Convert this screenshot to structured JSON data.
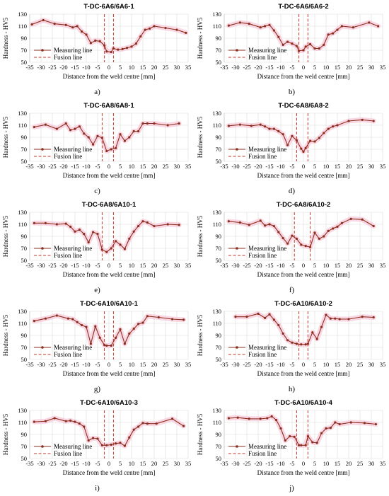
{
  "figure": {
    "captions": [
      "a)",
      "b)",
      "c)",
      "d)",
      "e)",
      "f)",
      "g)",
      "h)",
      "i)",
      "j)"
    ]
  },
  "colors": {
    "measuring_line": "#8B2E1F",
    "fusion_line": "#C0392B",
    "band": "#F7C9DA",
    "grid": "#D9D9D9",
    "axis_text": "#000000"
  },
  "chart_data": [
    {
      "type": "line",
      "title": "T-DC-6A6/6A6-1",
      "xlabel": "Distance from the weld centre [mm]",
      "ylabel": "Hardness - HV5",
      "xlim": [
        -35,
        35
      ],
      "ylim": [
        50,
        130
      ],
      "xticks": [
        -35,
        -30,
        -25,
        -20,
        -15,
        -10,
        -5,
        0,
        5,
        10,
        15,
        20,
        25,
        30,
        35
      ],
      "yticks": [
        50,
        70,
        90,
        110,
        130
      ],
      "grid": true,
      "legend_position": "lower-left",
      "series": [
        {
          "name": "Measuring line",
          "x": [
            -34,
            -29,
            -24,
            -19,
            -16,
            -14,
            -12,
            -10,
            -8,
            -6,
            -4,
            -2,
            -1,
            1,
            2,
            4,
            6,
            8,
            10,
            12,
            14,
            16,
            18,
            20,
            25,
            30,
            34
          ],
          "y": [
            113,
            120,
            114,
            112,
            108,
            110,
            101,
            96,
            82,
            86,
            85,
            78,
            68,
            67,
            73,
            71,
            72,
            74,
            76,
            81,
            93,
            104,
            106,
            110,
            107,
            104,
            99
          ]
        },
        {
          "name": "Fusion line",
          "x": [
            -2,
            2
          ]
        }
      ]
    },
    {
      "type": "line",
      "title": "T-DC-6A6/6A6-2",
      "xlabel": "Distance from the weld centre [mm]",
      "ylabel": "Hardness - HV5",
      "xlim": [
        -35,
        35
      ],
      "ylim": [
        50,
        130
      ],
      "xticks": [
        -35,
        -30,
        -25,
        -20,
        -15,
        -10,
        -5,
        0,
        5,
        10,
        15,
        20,
        25,
        30,
        35
      ],
      "yticks": [
        50,
        70,
        90,
        110,
        130
      ],
      "grid": true,
      "legend_position": "lower-left",
      "series": [
        {
          "name": "Measuring line",
          "x": [
            -33,
            -28,
            -24,
            -19,
            -17,
            -15,
            -13,
            -11,
            -9,
            -7,
            -5,
            -3,
            -2,
            0,
            1,
            3,
            5,
            7,
            9,
            11,
            13,
            15,
            17,
            22,
            29,
            33
          ],
          "y": [
            111,
            116,
            114,
            108,
            110,
            112,
            103,
            92,
            79,
            84,
            81,
            77,
            69,
            70,
            76,
            80,
            73,
            73,
            79,
            96,
            98,
            104,
            110,
            108,
            116,
            110
          ]
        },
        {
          "name": "Fusion line",
          "x": [
            -2,
            2
          ]
        }
      ]
    },
    {
      "type": "line",
      "title": "T-DC-6A8/6A8-1",
      "xlabel": "Distance from the weld centre [mm]",
      "ylabel": "Hardness - HV5",
      "xlim": [
        -35,
        35
      ],
      "ylim": [
        50,
        130
      ],
      "xticks": [
        -35,
        -30,
        -25,
        -20,
        -15,
        -10,
        -5,
        0,
        5,
        10,
        15,
        20,
        25,
        30,
        35
      ],
      "yticks": [
        50,
        70,
        90,
        110,
        130
      ],
      "grid": true,
      "legend_position": "lower-left",
      "series": [
        {
          "name": "Measuring line",
          "x": [
            -33,
            -28,
            -23,
            -19,
            -17,
            -15,
            -13,
            -11,
            -9,
            -7,
            -5,
            -3,
            -1,
            1,
            3,
            5,
            7,
            9,
            11,
            13,
            15,
            17,
            20,
            26,
            31
          ],
          "y": [
            107,
            111,
            104,
            113,
            102,
            104,
            108,
            96,
            90,
            78,
            92,
            89,
            67,
            70,
            72,
            95,
            84,
            90,
            100,
            100,
            113,
            113,
            113,
            110,
            113
          ]
        },
        {
          "name": "Fusion line",
          "x": [
            -3,
            2
          ]
        }
      ]
    },
    {
      "type": "line",
      "title": "T-DC-6A8/6A8-2",
      "xlabel": "Distance from the weld centre [mm]",
      "ylabel": "Hardness - HV5",
      "xlim": [
        -35,
        35
      ],
      "ylim": [
        50,
        130
      ],
      "xticks": [
        -35,
        -30,
        -25,
        -20,
        -15,
        -10,
        -5,
        0,
        5,
        10,
        15,
        20,
        25,
        30,
        35
      ],
      "yticks": [
        50,
        70,
        90,
        110,
        130
      ],
      "grid": true,
      "legend_position": "lower-left",
      "series": [
        {
          "name": "Measuring line",
          "x": [
            -33,
            -28,
            -23,
            -19,
            -17,
            -15,
            -13,
            -11,
            -9,
            -7,
            -5,
            -3,
            -1,
            0,
            1,
            3,
            5,
            7,
            9,
            11,
            13,
            15,
            20,
            26,
            31
          ],
          "y": [
            109,
            111,
            109,
            111,
            108,
            104,
            104,
            100,
            95,
            77,
            92,
            85,
            71,
            66,
            72,
            84,
            83,
            89,
            97,
            104,
            108,
            110,
            117,
            119,
            117
          ]
        },
        {
          "name": "Fusion line",
          "x": [
            -3,
            2
          ]
        }
      ]
    },
    {
      "type": "line",
      "title": "T-DC-6A8/6A10-1",
      "xlabel": "Distance from the weld centre [mm]",
      "ylabel": "Hardness - HV5",
      "xlim": [
        -35,
        35
      ],
      "ylim": [
        50,
        130
      ],
      "xticks": [
        -35,
        -30,
        -25,
        -20,
        -15,
        -10,
        -5,
        0,
        5,
        10,
        15,
        20,
        25,
        30,
        35
      ],
      "yticks": [
        50,
        70,
        90,
        110,
        130
      ],
      "grid": true,
      "legend_position": "lower-left",
      "series": [
        {
          "name": "Measuring line",
          "x": [
            -33,
            -28,
            -23,
            -19,
            -17,
            -15,
            -13,
            -11,
            -9,
            -7,
            -5,
            -3,
            -1,
            1,
            3,
            5,
            7,
            9,
            11,
            13,
            15,
            17,
            20,
            26,
            31
          ],
          "y": [
            112,
            112,
            110,
            111,
            106,
            98,
            101,
            94,
            80,
            97,
            94,
            68,
            64,
            70,
            82,
            76,
            69,
            86,
            98,
            107,
            115,
            113,
            107,
            110,
            109
          ]
        },
        {
          "name": "Fusion line",
          "x": [
            -3,
            2
          ]
        }
      ]
    },
    {
      "type": "line",
      "title": "T-DC-6A8/6A10-2",
      "xlabel": "Distance from the weld centre [mm]",
      "ylabel": "Hardness - HV5",
      "xlim": [
        -35,
        35
      ],
      "ylim": [
        50,
        130
      ],
      "xticks": [
        -35,
        -30,
        -25,
        -20,
        -15,
        -10,
        -5,
        0,
        5,
        10,
        15,
        20,
        25,
        30,
        35
      ],
      "yticks": [
        50,
        70,
        90,
        110,
        130
      ],
      "grid": true,
      "legend_position": "lower-left",
      "series": [
        {
          "name": "Measuring line",
          "x": [
            -33,
            -28,
            -24,
            -19,
            -17,
            -15,
            -13,
            -11,
            -9,
            -7,
            -5,
            -3,
            -1,
            1,
            3,
            5,
            7,
            9,
            11,
            13,
            15,
            17,
            21,
            26,
            31
          ],
          "y": [
            115,
            113,
            109,
            116,
            108,
            110,
            107,
            97,
            87,
            78,
            91,
            86,
            76,
            74,
            72,
            96,
            86,
            90,
            99,
            103,
            106,
            112,
            119,
            118,
            107
          ]
        },
        {
          "name": "Fusion line",
          "x": [
            -4,
            3
          ]
        }
      ]
    },
    {
      "type": "line",
      "title": "T-DC-6A10/6A10-1",
      "xlabel": "Distance from the weld centre [mm]",
      "ylabel": "Hardness - HV5",
      "xlim": [
        -35,
        35
      ],
      "ylim": [
        50,
        130
      ],
      "xticks": [
        -35,
        -30,
        -25,
        -20,
        -15,
        -10,
        -5,
        0,
        5,
        10,
        15,
        20,
        25,
        30,
        35
      ],
      "yticks": [
        50,
        70,
        90,
        110,
        130
      ],
      "grid": true,
      "legend_position": "lower-left",
      "series": [
        {
          "name": "Measuring line",
          "x": [
            -33,
            -28,
            -23,
            -18,
            -16,
            -14,
            -12,
            -10,
            -8,
            -6,
            -4,
            -2,
            -1,
            1,
            3,
            5,
            7,
            9,
            11,
            13,
            15,
            17,
            22,
            28,
            33
          ],
          "y": [
            114,
            118,
            123,
            118,
            117,
            112,
            107,
            104,
            76,
            105,
            86,
            74,
            73,
            73,
            86,
            100,
            76,
            93,
            101,
            109,
            111,
            122,
            120,
            117,
            116
          ]
        },
        {
          "name": "Fusion line",
          "x": [
            -2,
            2
          ]
        }
      ]
    },
    {
      "type": "line",
      "title": "T-DC-6A10/6A10-2",
      "xlabel": "Distance from the weld centre [mm]",
      "ylabel": "Hardness - HV5",
      "xlim": [
        -35,
        35
      ],
      "ylim": [
        50,
        130
      ],
      "xticks": [
        -35,
        -30,
        -25,
        -20,
        -15,
        -10,
        -5,
        0,
        5,
        10,
        15,
        20,
        25,
        30,
        35
      ],
      "yticks": [
        50,
        70,
        90,
        110,
        130
      ],
      "grid": true,
      "legend_position": "lower-left",
      "series": [
        {
          "name": "Measuring line",
          "x": [
            -30,
            -25,
            -20,
            -17,
            -15,
            -13,
            -11,
            -9,
            -7,
            -5,
            -3,
            -1,
            1,
            2,
            4,
            6,
            8,
            10,
            12,
            14,
            16,
            20,
            26,
            31
          ],
          "y": [
            121,
            121,
            126,
            119,
            125,
            116,
            107,
            93,
            82,
            78,
            76,
            75,
            75,
            76,
            95,
            84,
            104,
            124,
            118,
            118,
            117,
            117,
            121,
            120
          ]
        },
        {
          "name": "Fusion line",
          "x": [
            -2,
            2
          ]
        }
      ]
    },
    {
      "type": "line",
      "title": "T-DC-6A10/6A10-3",
      "xlabel": "Distance from the weld centre [mm]",
      "ylabel": "Hardness - HV5",
      "xlim": [
        -35,
        35
      ],
      "ylim": [
        50,
        130
      ],
      "xticks": [
        -35,
        -30,
        -25,
        -20,
        -15,
        -10,
        -5,
        0,
        5,
        10,
        15,
        20,
        25,
        30,
        35
      ],
      "yticks": [
        50,
        70,
        90,
        110,
        130
      ],
      "grid": true,
      "legend_position": "lower-left",
      "series": [
        {
          "name": "Measuring line",
          "x": [
            -33,
            -28,
            -24,
            -19,
            -17,
            -15,
            -13,
            -11,
            -9,
            -7,
            -5,
            -3,
            -1,
            1,
            3,
            5,
            7,
            9,
            11,
            13,
            15,
            17,
            21,
            28,
            33
          ],
          "y": [
            111,
            112,
            117,
            112,
            113,
            111,
            108,
            103,
            80,
            84,
            83,
            72,
            72,
            73,
            75,
            76,
            71,
            85,
            98,
            103,
            109,
            108,
            108,
            116,
            104
          ]
        },
        {
          "name": "Fusion line",
          "x": [
            -2,
            2
          ]
        }
      ]
    },
    {
      "type": "line",
      "title": "T-DC-6A10/6A10-4",
      "xlabel": "Distance from the weld centre [mm]",
      "ylabel": "Hardness - HV5",
      "xlim": [
        -35,
        35
      ],
      "ylim": [
        50,
        130
      ],
      "xticks": [
        -35,
        -30,
        -25,
        -20,
        -15,
        -10,
        -5,
        0,
        5,
        10,
        15,
        20,
        25,
        30,
        35
      ],
      "yticks": [
        50,
        70,
        90,
        110,
        130
      ],
      "grid": true,
      "legend_position": "lower-left",
      "series": [
        {
          "name": "Measuring line",
          "x": [
            -33,
            -29,
            -24,
            -19,
            -16,
            -14,
            -12,
            -10,
            -8,
            -6,
            -4,
            -2,
            -1,
            1,
            2,
            4,
            6,
            8,
            10,
            12,
            14,
            16,
            21,
            27,
            32
          ],
          "y": [
            117,
            118,
            116,
            116,
            117,
            120,
            114,
            100,
            80,
            87,
            86,
            72,
            72,
            72,
            87,
            77,
            76,
            92,
            100,
            101,
            110,
            107,
            110,
            109,
            107
          ]
        },
        {
          "name": "Fusion line",
          "x": [
            -3,
            2
          ]
        }
      ]
    }
  ]
}
